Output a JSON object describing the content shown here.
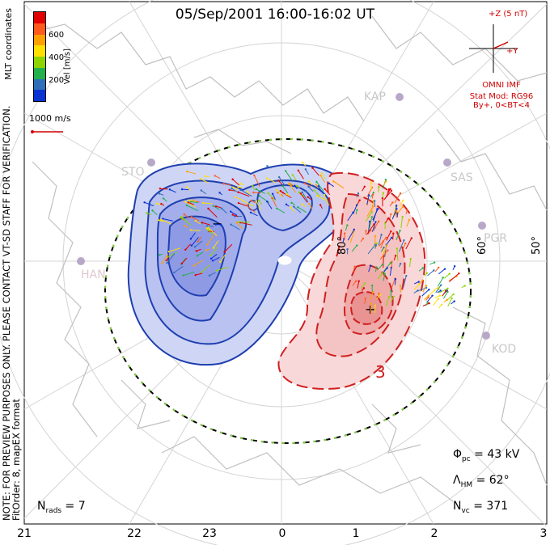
{
  "title": "05/Sep/2001 16:00-16:02 UT",
  "side_note": "NOTE: FOR PREVIEW PURPOSES ONLY. PLEASE CONTACT VT-SD STAFF FOR VERIFICATION.",
  "fit_order": "FitOrder: 8, mapEX format",
  "coord_label": "MLT coordinates",
  "velocity_scale": {
    "unit": "Vel [m/s]",
    "ticks": [
      "600",
      "400",
      "200"
    ],
    "colors": [
      "#e00000",
      "#ff5a1e",
      "#ffa000",
      "#ffe000",
      "#8ed400",
      "#22b14c",
      "#2f6fba",
      "#0a32d2"
    ]
  },
  "reference_vector": "1000 m/s",
  "imf": {
    "scale": "+Z (5 nT)",
    "y_axis": "+Y",
    "source": "OMNI IMF",
    "model": "Stat Mod: RG96",
    "condition": "By+, 0<BT<4",
    "color": "#d00000"
  },
  "stations": [
    "KAP",
    "SAS",
    "PGR",
    "KOD",
    "HAN",
    "STO"
  ],
  "latitude_labels": [
    "80°",
    "60°",
    "50°"
  ],
  "stats": {
    "phi_pc": "43 kV",
    "lambda_hm": "62°",
    "n_vc": "371",
    "n_rads": "7"
  },
  "contour_label": "3",
  "hour_ticks": [
    "21",
    "22",
    "23",
    "0",
    "1",
    "2",
    "3"
  ],
  "colors": {
    "negative_cell": "#1f3fb0",
    "positive_cell": "#d02020",
    "continent": "#c8c8c8",
    "grid": "#d4d4d4"
  }
}
